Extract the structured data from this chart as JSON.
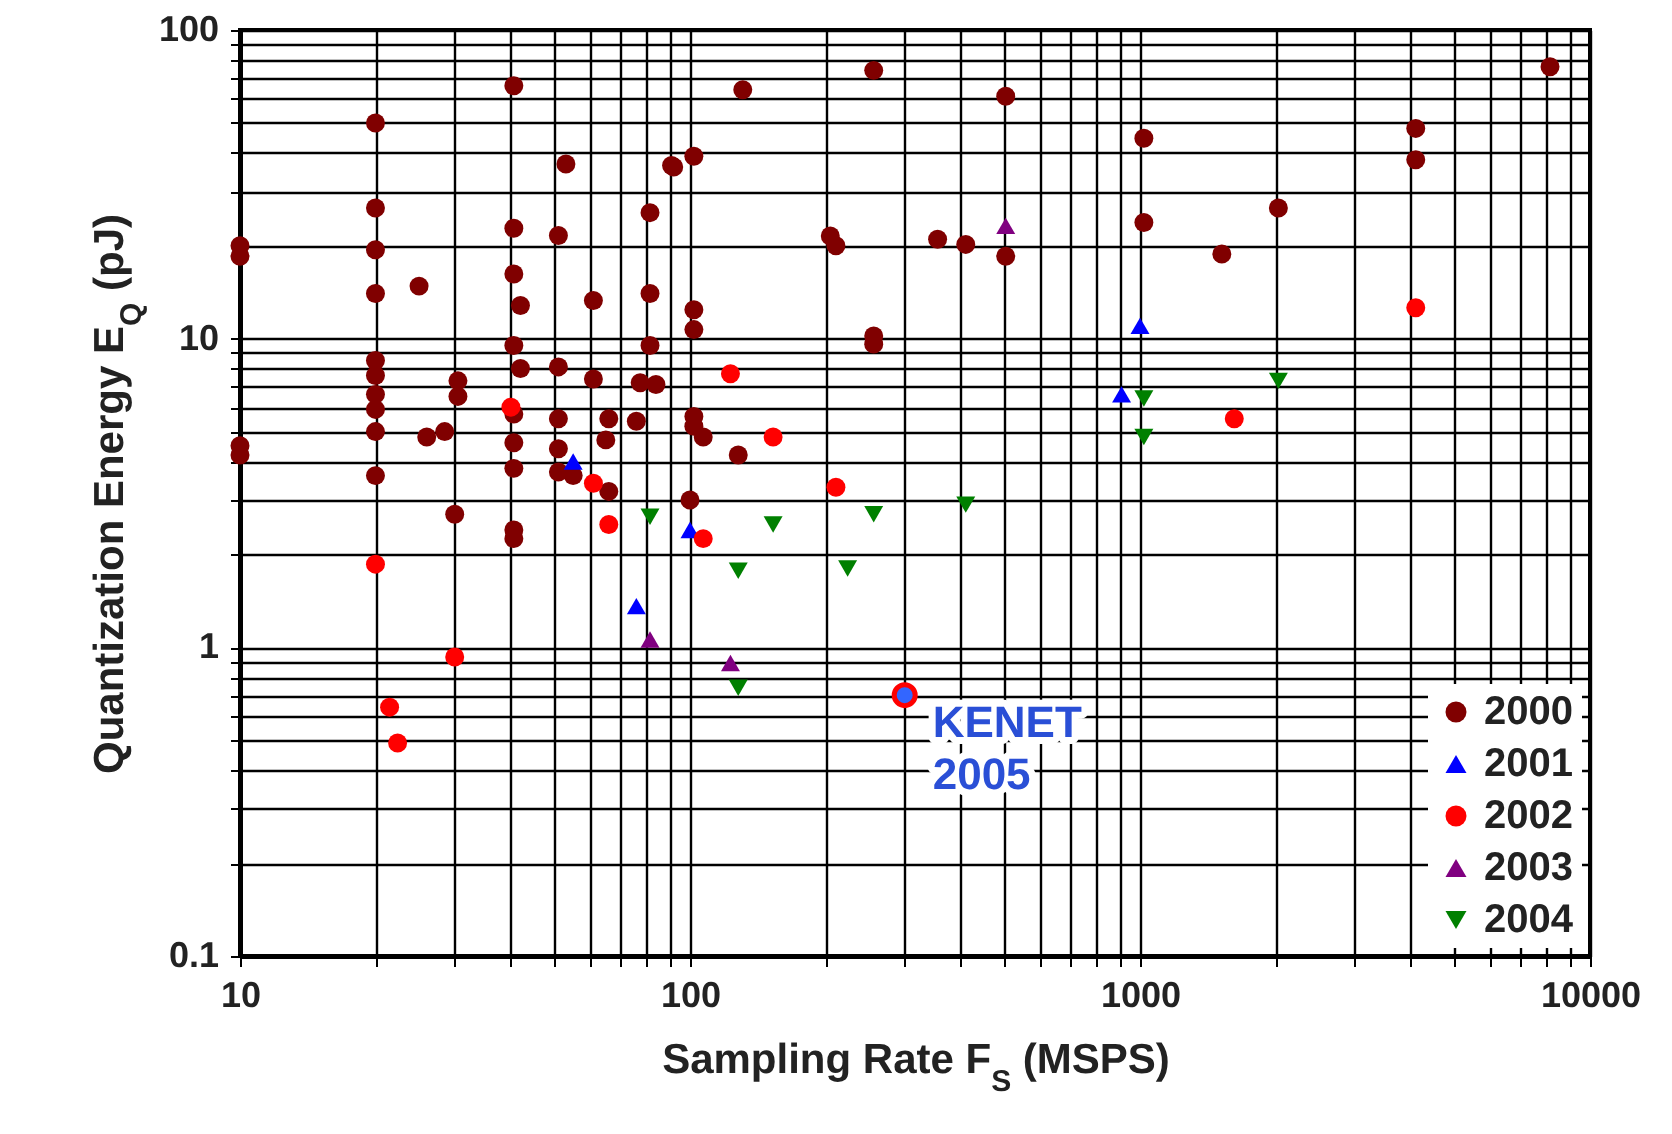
{
  "chart_data": {
    "type": "scatter",
    "xlabel": "Sampling Rate F$_{S}$ (MSPS)",
    "ylabel": "Quantization Energy E$_{Q}$  (pJ)",
    "log": "xy",
    "grid": true,
    "legend": "bottom right",
    "xlim": [
      10,
      10000
    ],
    "ylim": [
      0.1,
      100
    ],
    "xticks": [
      10,
      {
        "value": 20,
        "label": null
      },
      {
        "value": 30,
        "label": null
      },
      {
        "value": 40,
        "label": null
      },
      {
        "value": 50,
        "label": null
      },
      {
        "value": 60,
        "label": null
      },
      {
        "value": 70,
        "label": null
      },
      {
        "value": 80,
        "label": null
      },
      {
        "value": 90,
        "label": null
      },
      100,
      {
        "value": 200,
        "label": null
      },
      {
        "value": 300,
        "label": null
      },
      {
        "value": 400,
        "label": null
      },
      {
        "value": 500,
        "label": null
      },
      {
        "value": 600,
        "label": null
      },
      {
        "value": 700,
        "label": null
      },
      {
        "value": 800,
        "label": null
      },
      {
        "value": 900,
        "label": null
      },
      1000,
      {
        "value": 2000,
        "label": null
      },
      {
        "value": 3000,
        "label": null
      },
      {
        "value": 4000,
        "label": null
      },
      {
        "value": 5000,
        "label": null
      },
      {
        "value": 6000,
        "label": null
      },
      {
        "value": 7000,
        "label": null
      },
      {
        "value": 8000,
        "label": null
      },
      {
        "value": 9000,
        "label": null
      },
      10000
    ],
    "yticks": [
      0.1,
      {
        "value": 0.2,
        "label": null
      },
      {
        "value": 0.3,
        "label": null
      },
      {
        "value": 0.4,
        "label": null
      },
      {
        "value": 0.5,
        "label": null
      },
      {
        "value": 0.6,
        "label": null
      },
      {
        "value": 0.7,
        "label": null
      },
      {
        "value": 0.8,
        "label": null
      },
      {
        "value": 0.9,
        "label": null
      },
      1,
      {
        "value": 2,
        "label": null
      },
      {
        "value": 3,
        "label": null
      },
      {
        "value": 4,
        "label": null
      },
      {
        "value": 5,
        "label": null
      },
      {
        "value": 6,
        "label": null
      },
      {
        "value": 7,
        "label": null
      },
      {
        "value": 8,
        "label": null
      },
      {
        "value": 9,
        "label": null
      },
      10,
      {
        "value": 20,
        "label": null
      },
      {
        "value": 30,
        "label": null
      },
      {
        "value": 40,
        "label": null
      },
      {
        "value": 50,
        "label": null
      },
      {
        "value": 60,
        "label": null
      },
      {
        "value": 70,
        "label": null
      },
      {
        "value": 80,
        "label": null
      },
      {
        "value": 90,
        "label": null
      },
      100
    ],
    "series": [
      {
        "name": "2000",
        "color": "#800000",
        "marker": "circle",
        "x": [
          10,
          10,
          10,
          10,
          20,
          20,
          20,
          20,
          20,
          20,
          20,
          20,
          20,
          20,
          25,
          26,
          28.5,
          30.5,
          30.5,
          30,
          40.6,
          40.6,
          40.6,
          42,
          40.6,
          42,
          40.6,
          40.6,
          40.6,
          40.6,
          40.6,
          53,
          51,
          51,
          51,
          51,
          51,
          55,
          61,
          61,
          66,
          65,
          66,
          77.5,
          84,
          76,
          81.5,
          81.5,
          81.5,
          91,
          92,
          102,
          102,
          102,
          102,
          102,
          107,
          128,
          100,
          131,
          256,
          503,
          205,
          211,
          355,
          410,
          503,
          256,
          256,
          1020,
          1020,
          4100,
          4100,
          2030,
          1520,
          8150
        ],
        "values": [
          18.5,
          20,
          4.2,
          4.5,
          50,
          26.5,
          19.4,
          14,
          8.5,
          7.6,
          6.6,
          5.9,
          5,
          3.6,
          14.8,
          4.8,
          5,
          7.3,
          6.5,
          2.7,
          66,
          22.8,
          16.2,
          12.8,
          9.5,
          8,
          5.7,
          4.6,
          3.8,
          2.4,
          2.25,
          36.8,
          21.6,
          8.1,
          5.5,
          4.4,
          3.7,
          3.6,
          13.3,
          7.4,
          5.5,
          4.7,
          3.2,
          7.2,
          7.1,
          5.4,
          25.6,
          14,
          9.5,
          36.4,
          36,
          39,
          12.4,
          10.7,
          5.6,
          5.2,
          4.8,
          4.2,
          3,
          64,
          74,
          61,
          21.5,
          20,
          21,
          20.2,
          18.5,
          10.2,
          9.6,
          44.6,
          23.8,
          48,
          38,
          26.5,
          18.8,
          76
        ]
      },
      {
        "name": "2001",
        "color": "#0000ff",
        "marker": "triangle",
        "x": [
          55,
          76,
          100,
          910,
          1000
        ],
        "values": [
          4,
          1.36,
          2.4,
          6.6,
          11
        ]
      },
      {
        "name": "2002",
        "color": "#ff0000",
        "marker": "circle",
        "x": [
          40,
          61,
          66,
          20,
          30,
          21.5,
          22.4,
          107,
          123,
          153,
          211,
          1620,
          4100
        ],
        "values": [
          6,
          3.4,
          2.5,
          1.86,
          0.93,
          0.64,
          0.49,
          2.25,
          7.7,
          4.8,
          3.3,
          5.5,
          12.6
        ]
      },
      {
        "name": "2003",
        "color": "#800080",
        "marker": "triangle",
        "x": [
          81.5,
          123,
          503
        ],
        "values": [
          1.06,
          0.89,
          23.2
        ]
      },
      {
        "name": "2004",
        "color": "#008000",
        "marker": "triangle-down",
        "x": [
          81.5,
          128,
          128,
          153,
          224,
          256,
          410,
          1020,
          1020,
          2030
        ],
        "values": [
          2.65,
          1.77,
          0.74,
          2.5,
          1.8,
          2.7,
          2.9,
          6.4,
          4.8,
          7.3
        ]
      },
      {
        "color": "#3366ff",
        "marker": "circle",
        "x": [
          300
        ],
        "values": [
          0.7
        ]
      }
    ],
    "annotations": [
      {
        "text": "KENET\n2005",
        "x": 300,
        "y": 0.7
      }
    ]
  }
}
